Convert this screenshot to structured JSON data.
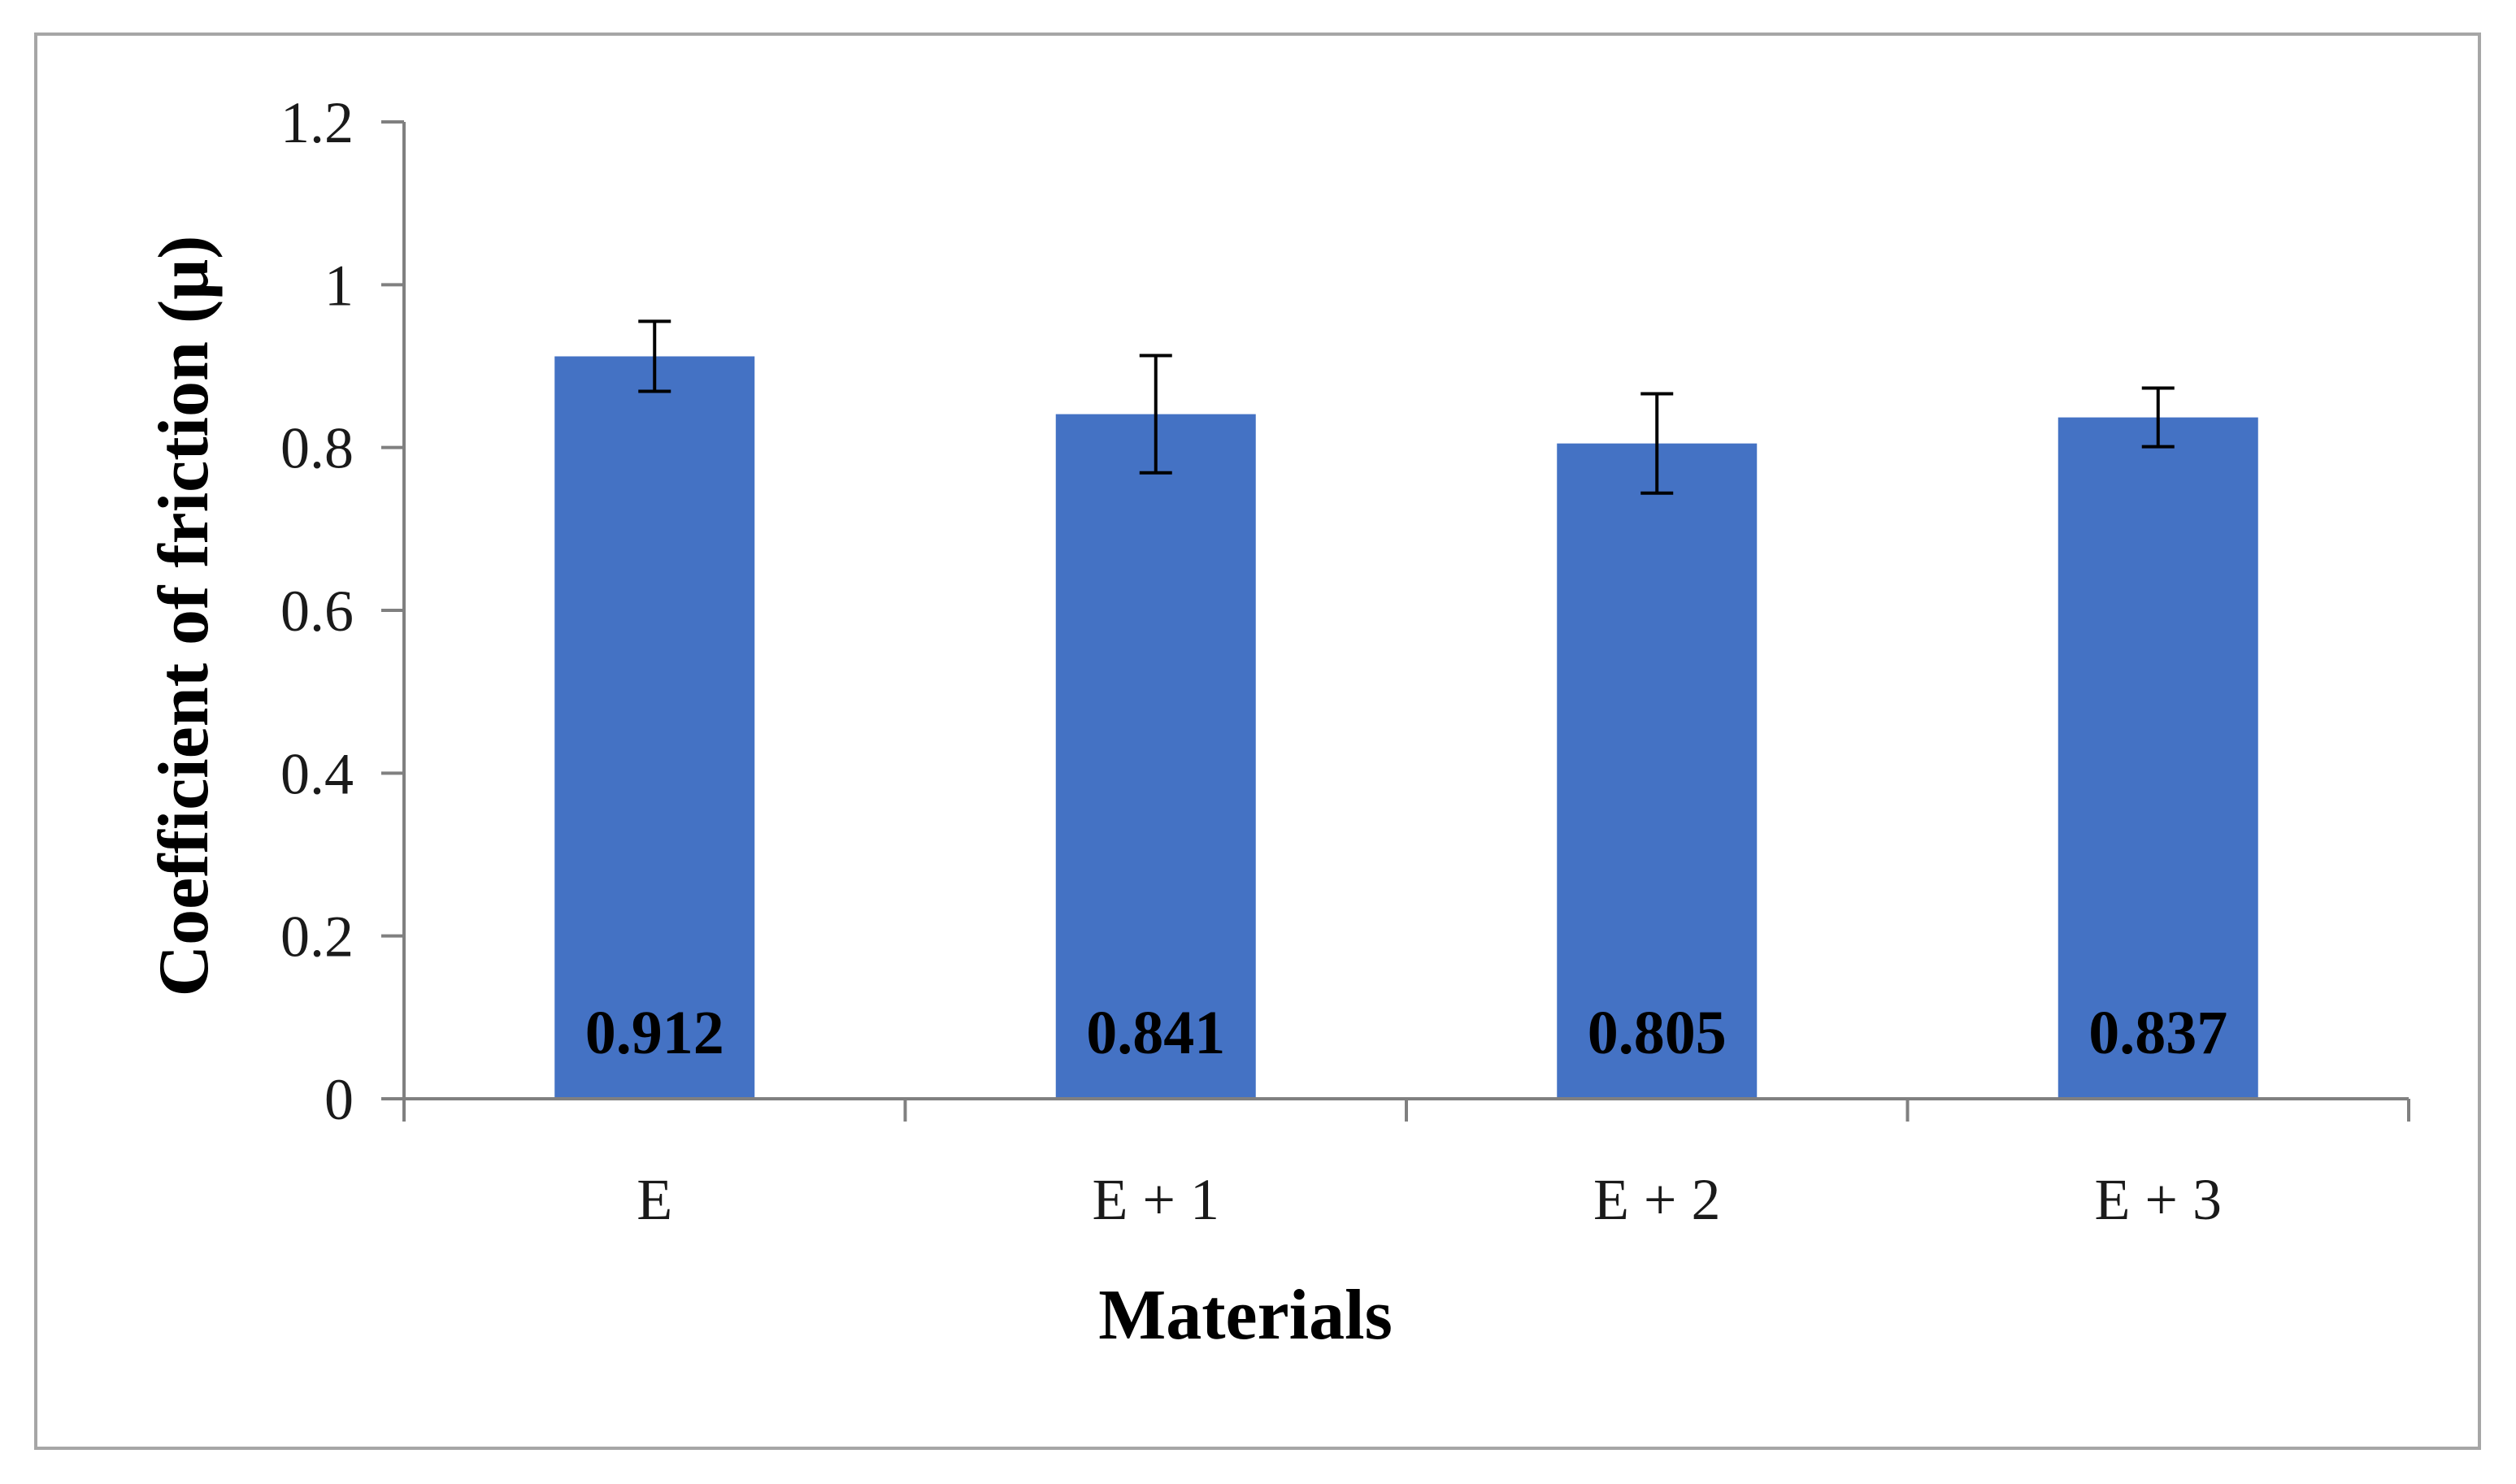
{
  "chart_data": {
    "type": "bar",
    "title": "",
    "xlabel": "Materials",
    "ylabel": "Coefficient of friction  (μ)",
    "categories": [
      "E",
      "E + 1",
      "E + 2",
      "E + 3"
    ],
    "values": [
      0.912,
      0.841,
      0.805,
      0.837
    ],
    "value_labels": [
      "0.912",
      "0.841",
      "0.805",
      "0.837"
    ],
    "error": [
      0.043,
      0.072,
      0.061,
      0.036
    ],
    "ylim": [
      0,
      1.2
    ],
    "yticks": [
      0,
      0.2,
      0.4,
      0.6,
      0.8,
      1,
      1.2
    ],
    "ytick_labels": [
      "0",
      "0.2",
      "0.4",
      "0.6",
      "0.8",
      "1",
      "1.2"
    ],
    "grid": false,
    "legend": "none",
    "colors": {
      "bar": "#4472c4",
      "axis": "#808080",
      "error_bar": "#000000",
      "frame": "#a6a6a6"
    }
  }
}
